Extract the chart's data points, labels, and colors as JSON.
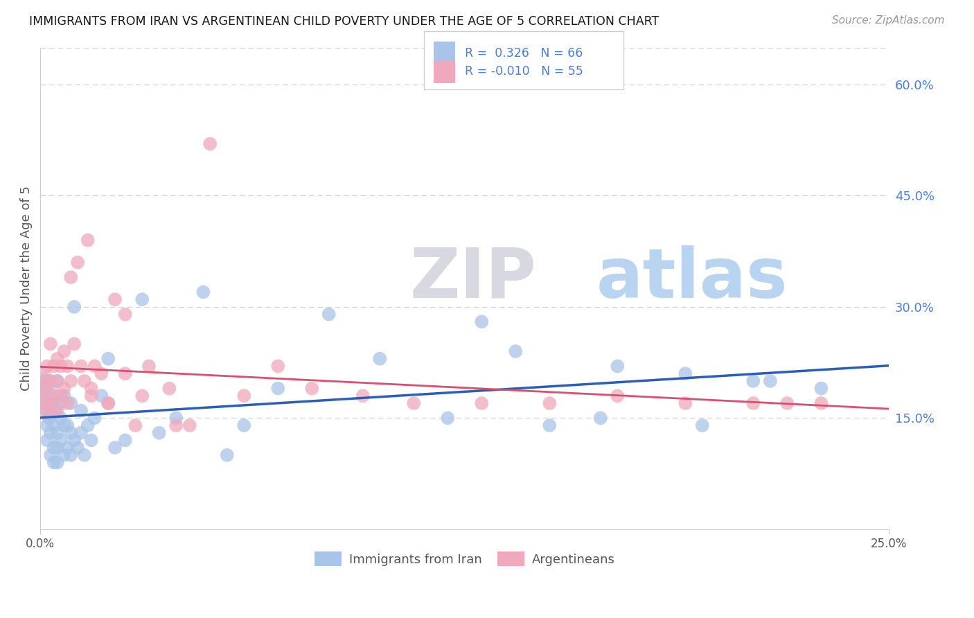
{
  "title": "IMMIGRANTS FROM IRAN VS ARGENTINEAN CHILD POVERTY UNDER THE AGE OF 5 CORRELATION CHART",
  "source": "Source: ZipAtlas.com",
  "ylabel": "Child Poverty Under the Age of 5",
  "legend_label_blue": "Immigrants from Iran",
  "legend_label_pink": "Argentineans",
  "blue_color": "#a8c4e8",
  "pink_color": "#f0a8bc",
  "blue_line_color": "#2b5eb8",
  "pink_line_color": "#d94f6e",
  "title_color": "#1a1a1a",
  "source_color": "#999999",
  "right_axis_color": "#4a7fd4",
  "watermark_zip_color": "#d8d8e0",
  "watermark_atlas_color": "#b8d4f0",
  "background_color": "#ffffff",
  "grid_color": "#d0d0dc",
  "blue_x": [
    0.0005,
    0.001,
    0.001,
    0.0015,
    0.002,
    0.002,
    0.002,
    0.0025,
    0.003,
    0.003,
    0.003,
    0.003,
    0.0035,
    0.004,
    0.004,
    0.004,
    0.004,
    0.0045,
    0.005,
    0.005,
    0.005,
    0.005,
    0.006,
    0.006,
    0.006,
    0.007,
    0.007,
    0.007,
    0.008,
    0.008,
    0.009,
    0.009,
    0.009,
    0.01,
    0.01,
    0.011,
    0.012,
    0.012,
    0.013,
    0.014,
    0.015,
    0.016,
    0.018,
    0.02,
    0.022,
    0.025,
    0.03,
    0.035,
    0.04,
    0.048,
    0.055,
    0.06,
    0.07,
    0.085,
    0.1,
    0.12,
    0.14,
    0.165,
    0.19,
    0.21,
    0.13,
    0.15,
    0.17,
    0.195,
    0.215,
    0.23
  ],
  "blue_y": [
    0.18,
    0.17,
    0.19,
    0.16,
    0.12,
    0.14,
    0.2,
    0.15,
    0.1,
    0.13,
    0.16,
    0.18,
    0.17,
    0.09,
    0.11,
    0.14,
    0.17,
    0.16,
    0.09,
    0.11,
    0.13,
    0.2,
    0.12,
    0.15,
    0.17,
    0.1,
    0.14,
    0.18,
    0.11,
    0.14,
    0.1,
    0.13,
    0.17,
    0.12,
    0.3,
    0.11,
    0.13,
    0.16,
    0.1,
    0.14,
    0.12,
    0.15,
    0.18,
    0.23,
    0.11,
    0.12,
    0.31,
    0.13,
    0.15,
    0.32,
    0.1,
    0.14,
    0.19,
    0.29,
    0.23,
    0.15,
    0.24,
    0.15,
    0.21,
    0.2,
    0.28,
    0.14,
    0.22,
    0.14,
    0.2,
    0.19
  ],
  "pink_x": [
    0.0005,
    0.001,
    0.001,
    0.002,
    0.002,
    0.002,
    0.003,
    0.003,
    0.003,
    0.004,
    0.004,
    0.005,
    0.005,
    0.005,
    0.006,
    0.006,
    0.007,
    0.007,
    0.008,
    0.008,
    0.009,
    0.009,
    0.01,
    0.011,
    0.012,
    0.013,
    0.014,
    0.015,
    0.016,
    0.018,
    0.02,
    0.022,
    0.025,
    0.028,
    0.032,
    0.038,
    0.044,
    0.05,
    0.06,
    0.07,
    0.08,
    0.095,
    0.11,
    0.13,
    0.15,
    0.17,
    0.19,
    0.21,
    0.22,
    0.23,
    0.015,
    0.02,
    0.025,
    0.03,
    0.04
  ],
  "pink_y": [
    0.18,
    0.17,
    0.2,
    0.16,
    0.19,
    0.22,
    0.17,
    0.2,
    0.25,
    0.18,
    0.22,
    0.16,
    0.2,
    0.23,
    0.18,
    0.22,
    0.19,
    0.24,
    0.17,
    0.22,
    0.34,
    0.2,
    0.25,
    0.36,
    0.22,
    0.2,
    0.39,
    0.18,
    0.22,
    0.21,
    0.17,
    0.31,
    0.21,
    0.14,
    0.22,
    0.19,
    0.14,
    0.52,
    0.18,
    0.22,
    0.19,
    0.18,
    0.17,
    0.17,
    0.17,
    0.18,
    0.17,
    0.17,
    0.17,
    0.17,
    0.19,
    0.17,
    0.29,
    0.18,
    0.14
  ],
  "xlim": [
    0.0,
    0.25
  ],
  "ylim": [
    0.0,
    0.65
  ],
  "marker_size": 200,
  "large_dot_size": 1200
}
